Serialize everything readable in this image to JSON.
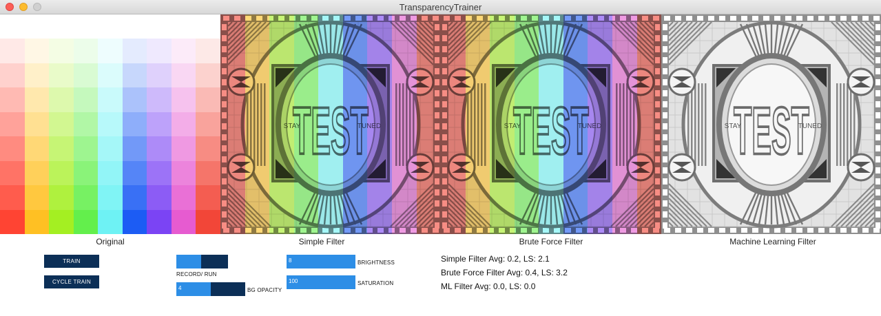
{
  "window": {
    "title": "TransparencyTrainer"
  },
  "panels": {
    "original_label": "Original",
    "simple_label": "Simple Filter",
    "brute_label": "Brute Force Filter",
    "ml_label": "Machine Learning Filter"
  },
  "testcard": {
    "word": "TEST",
    "left": "STAY",
    "right": "TUNED"
  },
  "palette": {
    "columns": [
      "#ff4433",
      "#ffc023",
      "#a4ef22",
      "#63ef4c",
      "#6ef2f4",
      "#1c5cf4",
      "#7b44f4",
      "#e65bd0",
      "#f24638"
    ],
    "rows": 8
  },
  "filter_bands": [
    "#f24638",
    "#ffc023",
    "#a4ef22",
    "#63ef4c",
    "#6ef2f4",
    "#1c5cf4",
    "#7b44f4",
    "#e65bd0",
    "#f24638"
  ],
  "controls": {
    "train_label": "TRAIN",
    "cycle_train_label": "CYCLE TRAIN",
    "record_run_label": "RECORD/ RUN",
    "record_run_fill": 0.48,
    "bg_opacity_label": "BG OPACITY",
    "bg_opacity_value": "4",
    "bg_opacity_fill": 0.5,
    "brightness_label": "BRIGHTNESS",
    "brightness_value": "8",
    "brightness_fill": 1.0,
    "saturation_label": "SATURATION",
    "saturation_value": "100",
    "saturation_fill": 1.0
  },
  "stats": {
    "simple": "Simple Filter Avg: 0.2, LS: 2.1",
    "brute": "Brute Force Filter Avg: 0.4, LS: 3.2",
    "ml": "ML Filter Avg: 0.0, LS: 0.0"
  }
}
